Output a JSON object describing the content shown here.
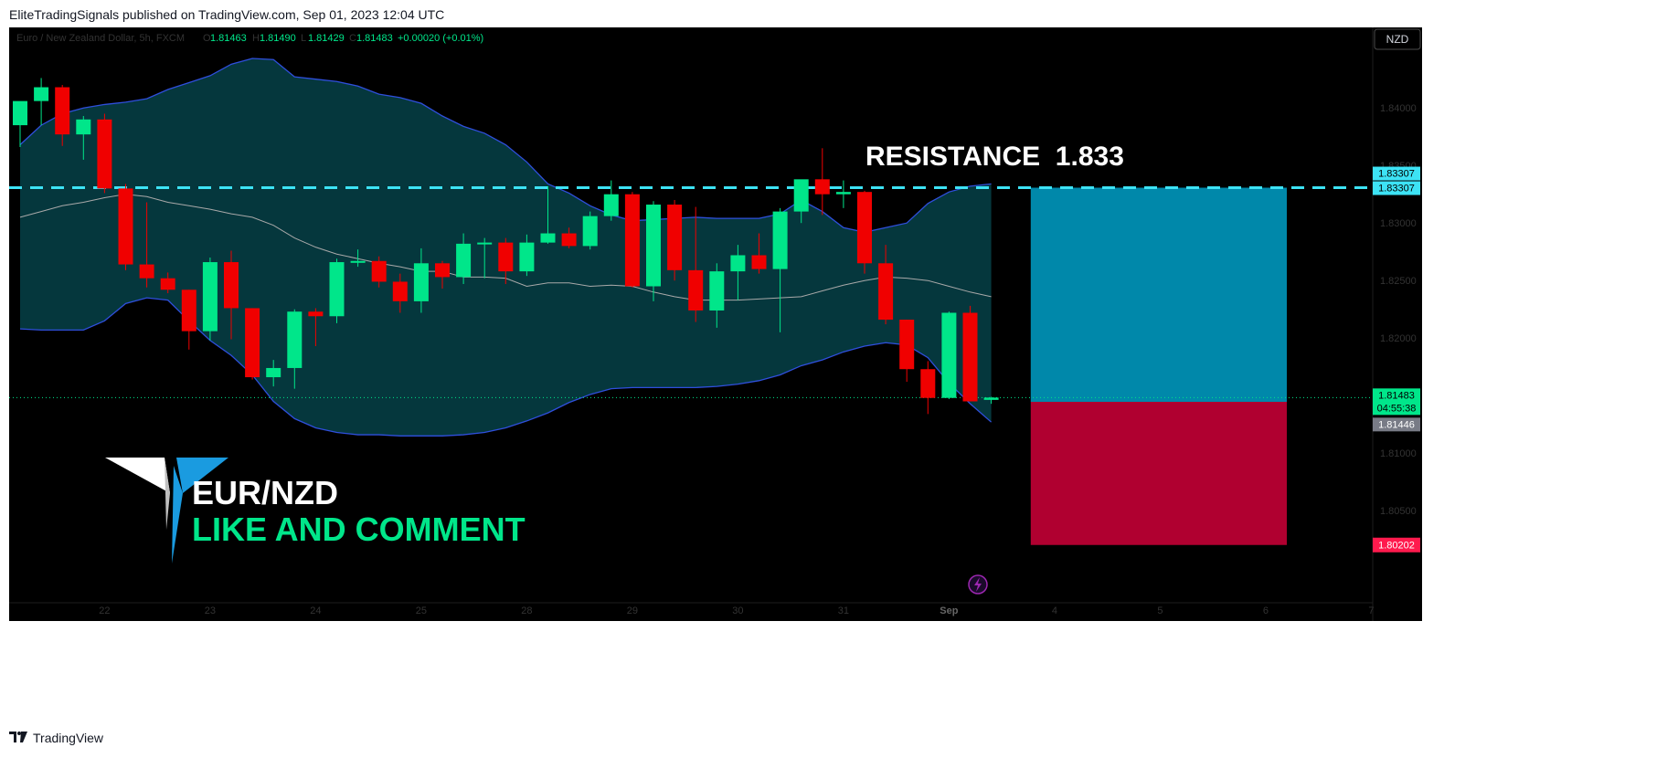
{
  "header": {
    "published": "EliteTradingSignals published on TradingView.com, Sep 01, 2023 12:04 UTC"
  },
  "footer": {
    "brand": "TradingView",
    "brand_icon": "tradingview-logo-icon"
  },
  "legend": {
    "symbol": "Euro / New Zealand Dollar, 5h, FXCM",
    "o_label": "O",
    "o": "1.81463",
    "h_label": "H",
    "h": "1.81490",
    "l_label": "L",
    "l": "1.81429",
    "c_label": "C",
    "c": "1.81483",
    "change": "+0.00020 (+0.01%)"
  },
  "currency_button": "NZD",
  "annotations": {
    "resistance": "RESISTANCE  1.833",
    "pair": "EUR/NZD",
    "cta": "LIKE AND COMMENT"
  },
  "price_labels": {
    "resistance_a": "1.83307",
    "resistance_b": "1.83307",
    "last": "1.81483",
    "countdown": "04:55:38",
    "prev": "1.81446",
    "stop": "1.80202"
  },
  "colors": {
    "background": "#000000",
    "up": "#00e68a",
    "down": "#f00000",
    "band_fill": "#05373d",
    "band_line": "#2f4fdc",
    "basis_line": "#a9a9a9",
    "resistance_line": "#3de3f5",
    "profit_zone": "#0088aa",
    "loss_zone": "#b00030",
    "label_pink": "#ff1a4d",
    "label_green": "#00e68a"
  },
  "chart_data": {
    "type": "candlestick",
    "title": "",
    "xlabel": "",
    "ylabel": "",
    "ylim": [
      1.797,
      1.847
    ],
    "y_ticks": [
      1.84,
      1.835,
      1.83,
      1.825,
      1.82,
      1.815,
      1.81,
      1.805
    ],
    "y_tick_labels": [
      "1.84000",
      "1.83500",
      "1.83000",
      "1.82500",
      "1.82000",
      "1.81500",
      "1.81000",
      "1.80500"
    ],
    "x_tick_labels": [
      {
        "label": "22",
        "bar": 4
      },
      {
        "label": "23",
        "bar": 9
      },
      {
        "label": "24",
        "bar": 14
      },
      {
        "label": "25",
        "bar": 19
      },
      {
        "label": "28",
        "bar": 24
      },
      {
        "label": "29",
        "bar": 29
      },
      {
        "label": "30",
        "bar": 34
      },
      {
        "label": "31",
        "bar": 39
      },
      {
        "label": "Sep",
        "bar": 44
      },
      {
        "label": "4",
        "bar": 49
      },
      {
        "label": "5",
        "bar": 54
      },
      {
        "label": "6",
        "bar": 59
      },
      {
        "label": "7",
        "bar": 64
      }
    ],
    "candles": [
      {
        "o": 1.8385,
        "h": 1.8405,
        "l": 1.8366,
        "c": 1.8406
      },
      {
        "o": 1.8406,
        "h": 1.8426,
        "l": 1.8385,
        "c": 1.8418
      },
      {
        "o": 1.8418,
        "h": 1.842,
        "l": 1.8367,
        "c": 1.8377
      },
      {
        "o": 1.8377,
        "h": 1.8393,
        "l": 1.8355,
        "c": 1.839
      },
      {
        "o": 1.839,
        "h": 1.8395,
        "l": 1.8326,
        "c": 1.833
      },
      {
        "o": 1.833,
        "h": 1.8334,
        "l": 1.8259,
        "c": 1.8264
      },
      {
        "o": 1.8264,
        "h": 1.8318,
        "l": 1.8244,
        "c": 1.8252
      },
      {
        "o": 1.8252,
        "h": 1.8257,
        "l": 1.8239,
        "c": 1.8242
      },
      {
        "o": 1.8242,
        "h": 1.8242,
        "l": 1.819,
        "c": 1.8206
      },
      {
        "o": 1.8206,
        "h": 1.827,
        "l": 1.8198,
        "c": 1.8266
      },
      {
        "o": 1.8266,
        "h": 1.8276,
        "l": 1.8199,
        "c": 1.8226
      },
      {
        "o": 1.8226,
        "h": 1.8226,
        "l": 1.8164,
        "c": 1.8166
      },
      {
        "o": 1.8166,
        "h": 1.8181,
        "l": 1.8158,
        "c": 1.8174
      },
      {
        "o": 1.8174,
        "h": 1.8225,
        "l": 1.8156,
        "c": 1.8223
      },
      {
        "o": 1.8223,
        "h": 1.8226,
        "l": 1.8193,
        "c": 1.8219
      },
      {
        "o": 1.8219,
        "h": 1.8269,
        "l": 1.8213,
        "c": 1.8266
      },
      {
        "o": 1.8266,
        "h": 1.8277,
        "l": 1.8262,
        "c": 1.8267
      },
      {
        "o": 1.8267,
        "h": 1.8271,
        "l": 1.8244,
        "c": 1.8249
      },
      {
        "o": 1.8249,
        "h": 1.8256,
        "l": 1.8222,
        "c": 1.8232
      },
      {
        "o": 1.8232,
        "h": 1.8278,
        "l": 1.8222,
        "c": 1.8265
      },
      {
        "o": 1.8265,
        "h": 1.8267,
        "l": 1.8243,
        "c": 1.8253
      },
      {
        "o": 1.8253,
        "h": 1.8291,
        "l": 1.8247,
        "c": 1.8282
      },
      {
        "o": 1.8282,
        "h": 1.8287,
        "l": 1.8252,
        "c": 1.8283
      },
      {
        "o": 1.8283,
        "h": 1.8287,
        "l": 1.8247,
        "c": 1.8258
      },
      {
        "o": 1.8258,
        "h": 1.829,
        "l": 1.8254,
        "c": 1.8283
      },
      {
        "o": 1.8283,
        "h": 1.8332,
        "l": 1.8282,
        "c": 1.8291
      },
      {
        "o": 1.8291,
        "h": 1.8296,
        "l": 1.8278,
        "c": 1.828
      },
      {
        "o": 1.828,
        "h": 1.831,
        "l": 1.8277,
        "c": 1.8306
      },
      {
        "o": 1.8306,
        "h": 1.8337,
        "l": 1.8302,
        "c": 1.8325
      },
      {
        "o": 1.8325,
        "h": 1.8327,
        "l": 1.8244,
        "c": 1.8245
      },
      {
        "o": 1.8245,
        "h": 1.8319,
        "l": 1.8232,
        "c": 1.8316
      },
      {
        "o": 1.8316,
        "h": 1.832,
        "l": 1.825,
        "c": 1.8259
      },
      {
        "o": 1.8259,
        "h": 1.8314,
        "l": 1.8214,
        "c": 1.8224
      },
      {
        "o": 1.8224,
        "h": 1.8265,
        "l": 1.8209,
        "c": 1.8258
      },
      {
        "o": 1.8258,
        "h": 1.8281,
        "l": 1.8233,
        "c": 1.8272
      },
      {
        "o": 1.8272,
        "h": 1.8291,
        "l": 1.8256,
        "c": 1.826
      },
      {
        "o": 1.826,
        "h": 1.8313,
        "l": 1.8205,
        "c": 1.831
      },
      {
        "o": 1.831,
        "h": 1.8336,
        "l": 1.83,
        "c": 1.8338
      },
      {
        "o": 1.8338,
        "h": 1.8365,
        "l": 1.8307,
        "c": 1.8325
      },
      {
        "o": 1.8325,
        "h": 1.8337,
        "l": 1.8313,
        "c": 1.8327
      },
      {
        "o": 1.8327,
        "h": 1.8328,
        "l": 1.8256,
        "c": 1.8265
      },
      {
        "o": 1.8265,
        "h": 1.8281,
        "l": 1.8212,
        "c": 1.8216
      },
      {
        "o": 1.8216,
        "h": 1.8216,
        "l": 1.8162,
        "c": 1.8173
      },
      {
        "o": 1.8173,
        "h": 1.818,
        "l": 1.8134,
        "c": 1.8148
      },
      {
        "o": 1.8148,
        "h": 1.8223,
        "l": 1.8147,
        "c": 1.8222
      },
      {
        "o": 1.8222,
        "h": 1.8228,
        "l": 1.8145,
        "c": 1.8145
      },
      {
        "o": 1.81463,
        "h": 1.8149,
        "l": 1.81429,
        "c": 1.81483
      }
    ],
    "bollinger": {
      "upper": [
        1.8368,
        1.8385,
        1.8395,
        1.84,
        1.8403,
        1.8405,
        1.8408,
        1.8416,
        1.8422,
        1.8428,
        1.8438,
        1.8443,
        1.8442,
        1.8427,
        1.8425,
        1.8423,
        1.8419,
        1.8412,
        1.8409,
        1.8404,
        1.8393,
        1.8384,
        1.8378,
        1.8368,
        1.8353,
        1.8334,
        1.8326,
        1.8315,
        1.8307,
        1.8302,
        1.8303,
        1.8304,
        1.8305,
        1.8304,
        1.8304,
        1.8304,
        1.8308,
        1.832,
        1.831,
        1.8296,
        1.8292,
        1.8296,
        1.83,
        1.8317,
        1.8327,
        1.8332,
        1.8334
      ],
      "middle": [
        1.8305,
        1.831,
        1.8315,
        1.8318,
        1.8322,
        1.8325,
        1.8323,
        1.8318,
        1.8315,
        1.8312,
        1.8308,
        1.8305,
        1.8298,
        1.8287,
        1.8279,
        1.8273,
        1.8269,
        1.8265,
        1.8262,
        1.8258,
        1.8258,
        1.8253,
        1.8253,
        1.8252,
        1.8245,
        1.8248,
        1.8248,
        1.8245,
        1.8246,
        1.8245,
        1.824,
        1.8236,
        1.8233,
        1.8233,
        1.8233,
        1.8234,
        1.8235,
        1.8236,
        1.8241,
        1.8246,
        1.825,
        1.8253,
        1.8252,
        1.825,
        1.8245,
        1.824,
        1.8236
      ],
      "lower": [
        1.8208,
        1.8207,
        1.8207,
        1.8207,
        1.8215,
        1.823,
        1.8235,
        1.8233,
        1.8215,
        1.8198,
        1.8185,
        1.8168,
        1.8145,
        1.813,
        1.8122,
        1.8118,
        1.8116,
        1.8116,
        1.8115,
        1.8115,
        1.8115,
        1.8116,
        1.8118,
        1.8122,
        1.8128,
        1.8135,
        1.8144,
        1.8151,
        1.8156,
        1.8157,
        1.8157,
        1.8157,
        1.8157,
        1.8158,
        1.816,
        1.8163,
        1.8168,
        1.8176,
        1.8181,
        1.8188,
        1.8193,
        1.8196,
        1.8194,
        1.8183,
        1.8161,
        1.8143,
        1.8127
      ]
    },
    "resistance_level": 1.83307,
    "last_price": 1.81483,
    "stop_level": 1.80202,
    "position_zone": {
      "start_bar": 48,
      "end_bar": 60,
      "entry": 1.81446,
      "target": 1.83307,
      "stop": 1.80202
    }
  }
}
